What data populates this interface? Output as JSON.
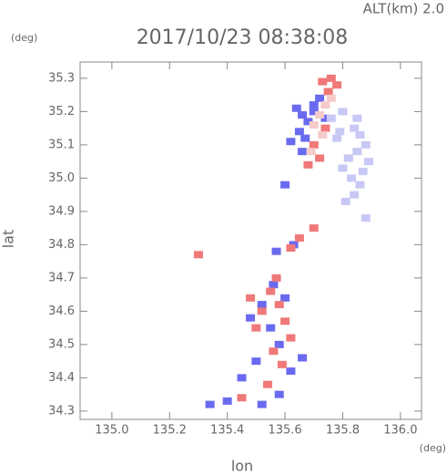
{
  "chart_data": {
    "type": "scatter",
    "title": "2017/10/23 08:38:08",
    "subtitle": "ALT(km) 2.0",
    "x_label": "lon",
    "y_label": "lat",
    "x_unit": "(deg)",
    "y_unit": "(deg)",
    "xlim": [
      134.89,
      136.073
    ],
    "ylim": [
      34.275,
      35.349
    ],
    "xticks": [
      {
        "value": 135.0,
        "label": "135.0"
      },
      135.2,
      135.4,
      135.6,
      135.8,
      {
        "value": 136.0,
        "label": "136.0"
      }
    ],
    "yticks": [
      34.3,
      34.4,
      34.5,
      34.6,
      34.7,
      34.8,
      34.9,
      {
        "value": 35.0,
        "label": "35.0"
      },
      35.1,
      35.2,
      35.3
    ],
    "series": [
      {
        "color": "#6a6af0",
        "x": [
          135.64,
          135.66,
          135.68,
          135.7,
          135.65,
          135.67,
          135.62,
          135.66,
          135.7,
          135.74,
          135.72,
          135.6,
          135.63,
          135.57,
          135.52,
          135.48,
          135.55,
          135.58,
          135.5,
          135.45,
          135.4,
          135.52,
          135.58,
          135.62,
          135.56,
          135.6,
          135.66,
          135.34
        ],
        "values": [
          35.21,
          35.19,
          35.17,
          35.2,
          35.14,
          35.12,
          35.11,
          35.08,
          35.22,
          35.18,
          35.24,
          34.98,
          34.8,
          34.78,
          34.62,
          34.58,
          34.55,
          34.5,
          34.45,
          34.4,
          34.33,
          34.32,
          34.35,
          34.42,
          34.68,
          34.64,
          34.46,
          34.32
        ]
      },
      {
        "color": "#f07878",
        "x": [
          135.73,
          135.76,
          135.78,
          135.75,
          135.7,
          135.72,
          135.68,
          135.74,
          135.55,
          135.58,
          135.52,
          135.6,
          135.62,
          135.5,
          135.56,
          135.59,
          135.48,
          135.54,
          135.65,
          135.7,
          135.62,
          135.57,
          135.45,
          135.3
        ],
        "values": [
          35.29,
          35.3,
          35.28,
          35.26,
          35.1,
          35.06,
          35.04,
          35.15,
          34.66,
          34.62,
          34.6,
          34.57,
          34.52,
          34.55,
          34.48,
          34.44,
          34.64,
          34.38,
          34.82,
          34.85,
          34.79,
          34.7,
          34.34,
          34.77
        ]
      },
      {
        "color": "#c8c8f6",
        "x": [
          135.84,
          135.86,
          135.88,
          135.85,
          135.82,
          135.8,
          135.83,
          135.87,
          135.89,
          135.86,
          135.84,
          135.81,
          135.78,
          135.8,
          135.85,
          135.88,
          135.76,
          135.79
        ],
        "values": [
          35.15,
          35.13,
          35.1,
          35.08,
          35.06,
          35.03,
          35.0,
          35.02,
          35.05,
          34.98,
          34.95,
          34.93,
          35.12,
          35.2,
          35.18,
          34.88,
          35.18,
          35.14
        ]
      },
      {
        "color": "#f6caca",
        "x": [
          135.74,
          135.72,
          135.7,
          135.76,
          135.73,
          135.69
        ],
        "values": [
          35.22,
          35.19,
          35.16,
          35.24,
          35.13,
          35.08
        ]
      }
    ]
  }
}
